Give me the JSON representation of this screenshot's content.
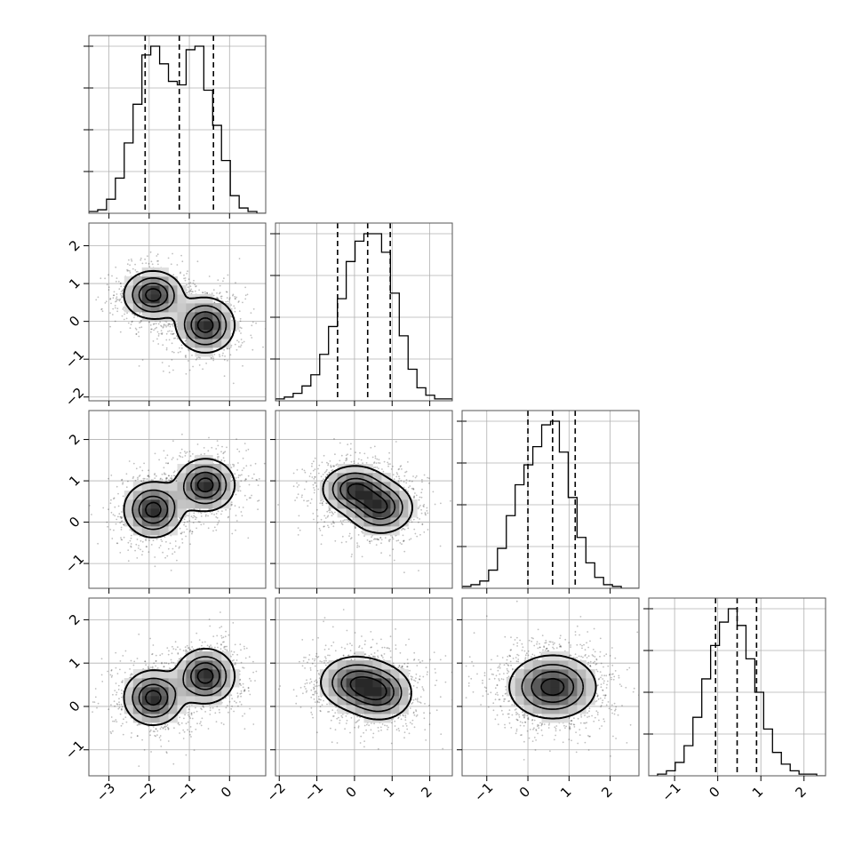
{
  "chart_data": {
    "type": "corner",
    "parameters": 4,
    "colors": {
      "hist": "#000000",
      "scatter": "#000000",
      "grid": "#b0b0b0",
      "frame": "#555555",
      "quantile": "#000000"
    },
    "grid": true,
    "quantiles": [
      0.16,
      0.5,
      0.84
    ],
    "axes": [
      {
        "range": [
          -3.5,
          0.9
        ],
        "ticks": [
          -3,
          -2,
          -1,
          0
        ],
        "tick_labels": [
          "−3",
          "−2",
          "−1",
          "0"
        ]
      },
      {
        "range": [
          -2.1,
          2.6
        ],
        "ticks": [
          -2,
          -1,
          0,
          1,
          2
        ],
        "tick_labels": [
          "−2",
          "−1",
          "0",
          "1",
          "2"
        ]
      },
      {
        "range": [
          -1.6,
          2.7
        ],
        "ticks": [
          -1,
          0,
          1,
          2
        ],
        "tick_labels": [
          "−1",
          "0",
          "1",
          "2"
        ]
      },
      {
        "range": [
          -1.6,
          2.5
        ],
        "ticks": [
          -1,
          0,
          1,
          2
        ],
        "tick_labels": [
          "−1",
          "0",
          "1",
          "2"
        ]
      }
    ],
    "histograms": [
      {
        "param": 0,
        "quantile_lines": [
          -2.1,
          -1.25,
          -0.4
        ],
        "bins_lo": -3.5,
        "bin_width": 0.22,
        "values": [
          1,
          2,
          8,
          20,
          40,
          62,
          90,
          95,
          85,
          75,
          73,
          93,
          95,
          70,
          50,
          30,
          10,
          3,
          1,
          0
        ]
      },
      {
        "param": 1,
        "quantile_lines": [
          -0.45,
          0.35,
          0.95
        ],
        "bins_lo": -2.1,
        "bin_width": 0.235,
        "values": [
          1,
          2,
          4,
          8,
          14,
          25,
          40,
          55,
          75,
          86,
          90,
          90,
          80,
          58,
          35,
          17,
          7,
          3,
          1,
          1
        ]
      },
      {
        "param": 2,
        "quantile_lines": [
          0.0,
          0.6,
          1.15
        ],
        "bins_lo": -1.6,
        "bin_width": 0.215,
        "values": [
          1,
          2,
          4,
          10,
          22,
          40,
          57,
          68,
          78,
          90,
          92,
          75,
          50,
          28,
          14,
          6,
          2,
          1,
          0,
          0
        ]
      },
      {
        "param": 3,
        "quantile_lines": [
          -0.05,
          0.45,
          0.9
        ],
        "bins_lo": -1.6,
        "bin_width": 0.205,
        "values": [
          0,
          1,
          3,
          8,
          18,
          35,
          58,
          78,
          92,
          100,
          90,
          70,
          50,
          28,
          14,
          7,
          3,
          1,
          1,
          0
        ]
      }
    ],
    "pair_panels": [
      {
        "x": 0,
        "y": 1,
        "clusters": [
          {
            "x": -1.9,
            "y": 0.7,
            "sx": 0.38,
            "sy": 0.33
          },
          {
            "x": -0.6,
            "y": -0.1,
            "sx": 0.38,
            "sy": 0.38
          }
        ]
      },
      {
        "x": 0,
        "y": 2,
        "clusters": [
          {
            "x": -1.9,
            "y": 0.3,
            "sx": 0.38,
            "sy": 0.35
          },
          {
            "x": -0.6,
            "y": 0.9,
            "sx": 0.38,
            "sy": 0.33
          }
        ]
      },
      {
        "x": 1,
        "y": 2,
        "clusters": [
          {
            "x": 0.0,
            "y": 0.8,
            "sx": 0.45,
            "sy": 0.3
          },
          {
            "x": 0.7,
            "y": 0.35,
            "sx": 0.45,
            "sy": 0.33
          }
        ]
      },
      {
        "x": 0,
        "y": 3,
        "clusters": [
          {
            "x": -1.9,
            "y": 0.2,
            "sx": 0.38,
            "sy": 0.33
          },
          {
            "x": -0.6,
            "y": 0.7,
            "sx": 0.38,
            "sy": 0.33
          }
        ]
      },
      {
        "x": 1,
        "y": 3,
        "clusters": [
          {
            "x": 0.0,
            "y": 0.55,
            "sx": 0.5,
            "sy": 0.33
          },
          {
            "x": 0.7,
            "y": 0.3,
            "sx": 0.45,
            "sy": 0.33
          }
        ]
      },
      {
        "x": 2,
        "y": 3,
        "clusters": [
          {
            "x": 0.6,
            "y": 0.45,
            "sx": 0.55,
            "sy": 0.38
          }
        ]
      }
    ]
  }
}
